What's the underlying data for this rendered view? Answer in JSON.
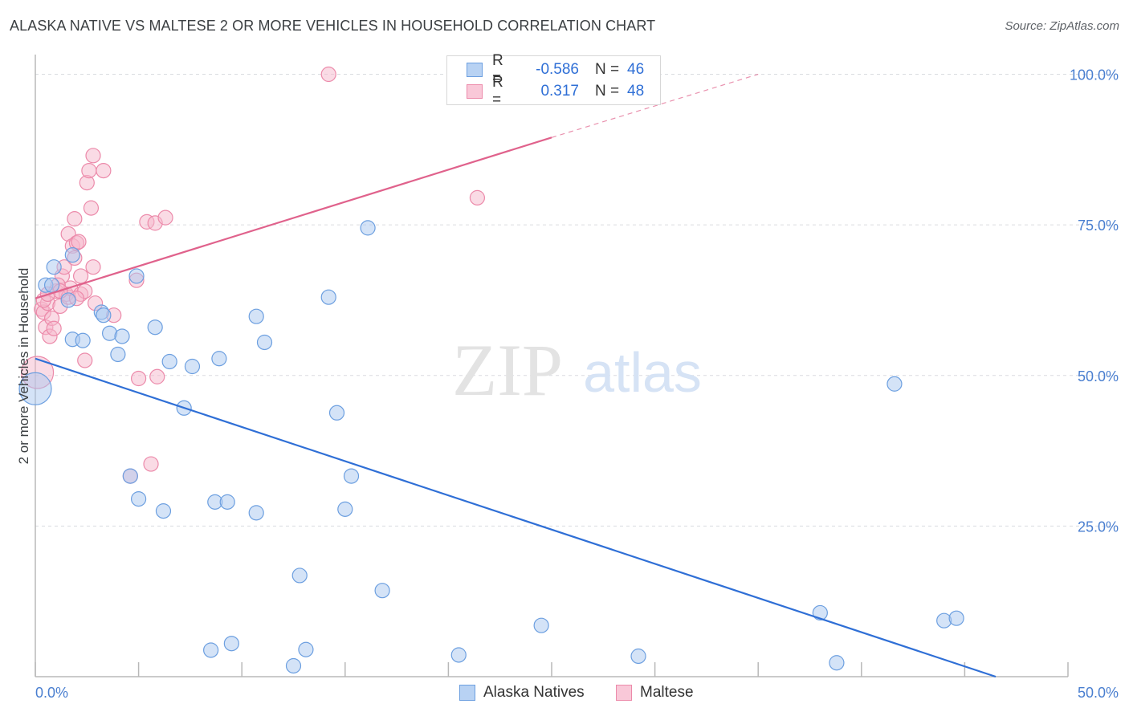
{
  "header": {
    "title": "ALASKA NATIVE VS MALTESE 2 OR MORE VEHICLES IN HOUSEHOLD CORRELATION CHART",
    "source": "Source: ZipAtlas.com"
  },
  "watermark": {
    "zip": "ZIP",
    "atlas": "atlas"
  },
  "legend": {
    "rows": [
      {
        "r_label": "R =",
        "r_value": "-0.586",
        "n_label": "N =",
        "n_value": "46"
      },
      {
        "r_label": "R =",
        "r_value": "0.317",
        "n_label": "N =",
        "n_value": "48"
      }
    ]
  },
  "bottom_legend": {
    "series1": "Alaska Natives",
    "series2": "Maltese"
  },
  "colors": {
    "blue_fill": "#a9c8f0",
    "blue_stroke": "#6c9fe0",
    "blue_line": "#2f6fd6",
    "pink_fill": "#f6b8cc",
    "pink_stroke": "#ec8aaa",
    "pink_line": "#e0628c",
    "tick_text": "#4a7fd0",
    "grid": "#dadce0"
  },
  "chart_data": {
    "type": "scatter",
    "title": "ALASKA NATIVE VS MALTESE 2 OR MORE VEHICLES IN HOUSEHOLD CORRELATION CHART",
    "xlabel": "",
    "ylabel": "2 or more Vehicles in Household",
    "xlim": [
      0,
      50
    ],
    "ylim": [
      0,
      103
    ],
    "x_tick_labels": [
      "0.0%",
      "50.0%"
    ],
    "y_ticks": [
      25,
      50,
      75,
      100
    ],
    "y_tick_labels": [
      "25.0%",
      "50.0%",
      "75.0%",
      "100.0%"
    ],
    "grid": true,
    "series": [
      {
        "name": "Alaska Natives",
        "r": -0.586,
        "n": 46,
        "trend": {
          "x0": 0,
          "y0": 52.8,
          "x1": 46.5,
          "y1": 0,
          "dashed_to": null
        },
        "points": [
          [
            0.0,
            47.8
          ],
          [
            0.5,
            65.0
          ],
          [
            0.9,
            68.0
          ],
          [
            0.8,
            65.0
          ],
          [
            1.6,
            62.5
          ],
          [
            1.8,
            70.0
          ],
          [
            1.8,
            56.0
          ],
          [
            2.3,
            55.8
          ],
          [
            3.2,
            60.5
          ],
          [
            3.3,
            60.0
          ],
          [
            3.6,
            57.0
          ],
          [
            4.2,
            56.5
          ],
          [
            4.0,
            53.5
          ],
          [
            4.9,
            66.5
          ],
          [
            5.8,
            58.0
          ],
          [
            6.5,
            52.3
          ],
          [
            7.6,
            51.5
          ],
          [
            7.2,
            44.6
          ],
          [
            8.9,
            52.8
          ],
          [
            10.7,
            59.8
          ],
          [
            11.1,
            55.5
          ],
          [
            14.2,
            63.0
          ],
          [
            16.1,
            74.5
          ],
          [
            14.6,
            43.8
          ],
          [
            15.0,
            27.8
          ],
          [
            15.3,
            33.3
          ],
          [
            4.6,
            33.3
          ],
          [
            5.0,
            29.5
          ],
          [
            6.2,
            27.5
          ],
          [
            8.7,
            29.0
          ],
          [
            9.3,
            29.0
          ],
          [
            10.7,
            27.2
          ],
          [
            12.8,
            16.8
          ],
          [
            16.8,
            14.3
          ],
          [
            9.5,
            5.5
          ],
          [
            8.5,
            4.4
          ],
          [
            12.5,
            1.8
          ],
          [
            13.1,
            4.5
          ],
          [
            20.5,
            3.6
          ],
          [
            24.5,
            8.5
          ],
          [
            29.2,
            3.4
          ],
          [
            38.0,
            10.6
          ],
          [
            38.8,
            2.3
          ],
          [
            44.0,
            9.3
          ],
          [
            44.6,
            9.7
          ],
          [
            41.6,
            48.6
          ]
        ]
      },
      {
        "name": "Maltese",
        "r": 0.317,
        "n": 48,
        "trend": {
          "x0": 0,
          "y0": 62.8,
          "x1": 25.0,
          "y1": 89.5,
          "dashed_to": {
            "x": 35.0,
            "y": 100
          }
        },
        "points": [
          [
            0.1,
            50.5
          ],
          [
            0.3,
            61.0
          ],
          [
            0.4,
            60.5
          ],
          [
            0.6,
            62.0
          ],
          [
            0.5,
            58.0
          ],
          [
            0.7,
            56.5
          ],
          [
            0.8,
            59.5
          ],
          [
            0.9,
            57.8
          ],
          [
            1.0,
            64.0
          ],
          [
            1.2,
            61.5
          ],
          [
            1.3,
            66.5
          ],
          [
            1.4,
            68.0
          ],
          [
            1.5,
            63.5
          ],
          [
            1.6,
            63.0
          ],
          [
            1.7,
            64.5
          ],
          [
            1.6,
            73.5
          ],
          [
            1.8,
            71.5
          ],
          [
            1.9,
            76.0
          ],
          [
            2.0,
            72.0
          ],
          [
            2.1,
            72.2
          ],
          [
            2.2,
            63.5
          ],
          [
            2.4,
            64.0
          ],
          [
            2.4,
            52.5
          ],
          [
            2.5,
            82.0
          ],
          [
            2.6,
            84.0
          ],
          [
            2.7,
            77.8
          ],
          [
            2.8,
            86.5
          ],
          [
            2.8,
            68.0
          ],
          [
            2.9,
            62.0
          ],
          [
            3.3,
            84.0
          ],
          [
            3.8,
            60.0
          ],
          [
            4.6,
            33.3
          ],
          [
            4.9,
            65.8
          ],
          [
            5.0,
            49.5
          ],
          [
            5.4,
            75.5
          ],
          [
            5.6,
            35.3
          ],
          [
            5.8,
            75.3
          ],
          [
            5.9,
            49.8
          ],
          [
            6.3,
            76.2
          ],
          [
            2.0,
            62.8
          ],
          [
            1.1,
            65.0
          ],
          [
            0.4,
            62.5
          ],
          [
            2.2,
            66.5
          ],
          [
            1.9,
            69.5
          ],
          [
            14.2,
            100.0
          ],
          [
            21.4,
            79.5
          ],
          [
            1.2,
            64.0
          ],
          [
            0.6,
            63.5
          ]
        ]
      }
    ]
  }
}
